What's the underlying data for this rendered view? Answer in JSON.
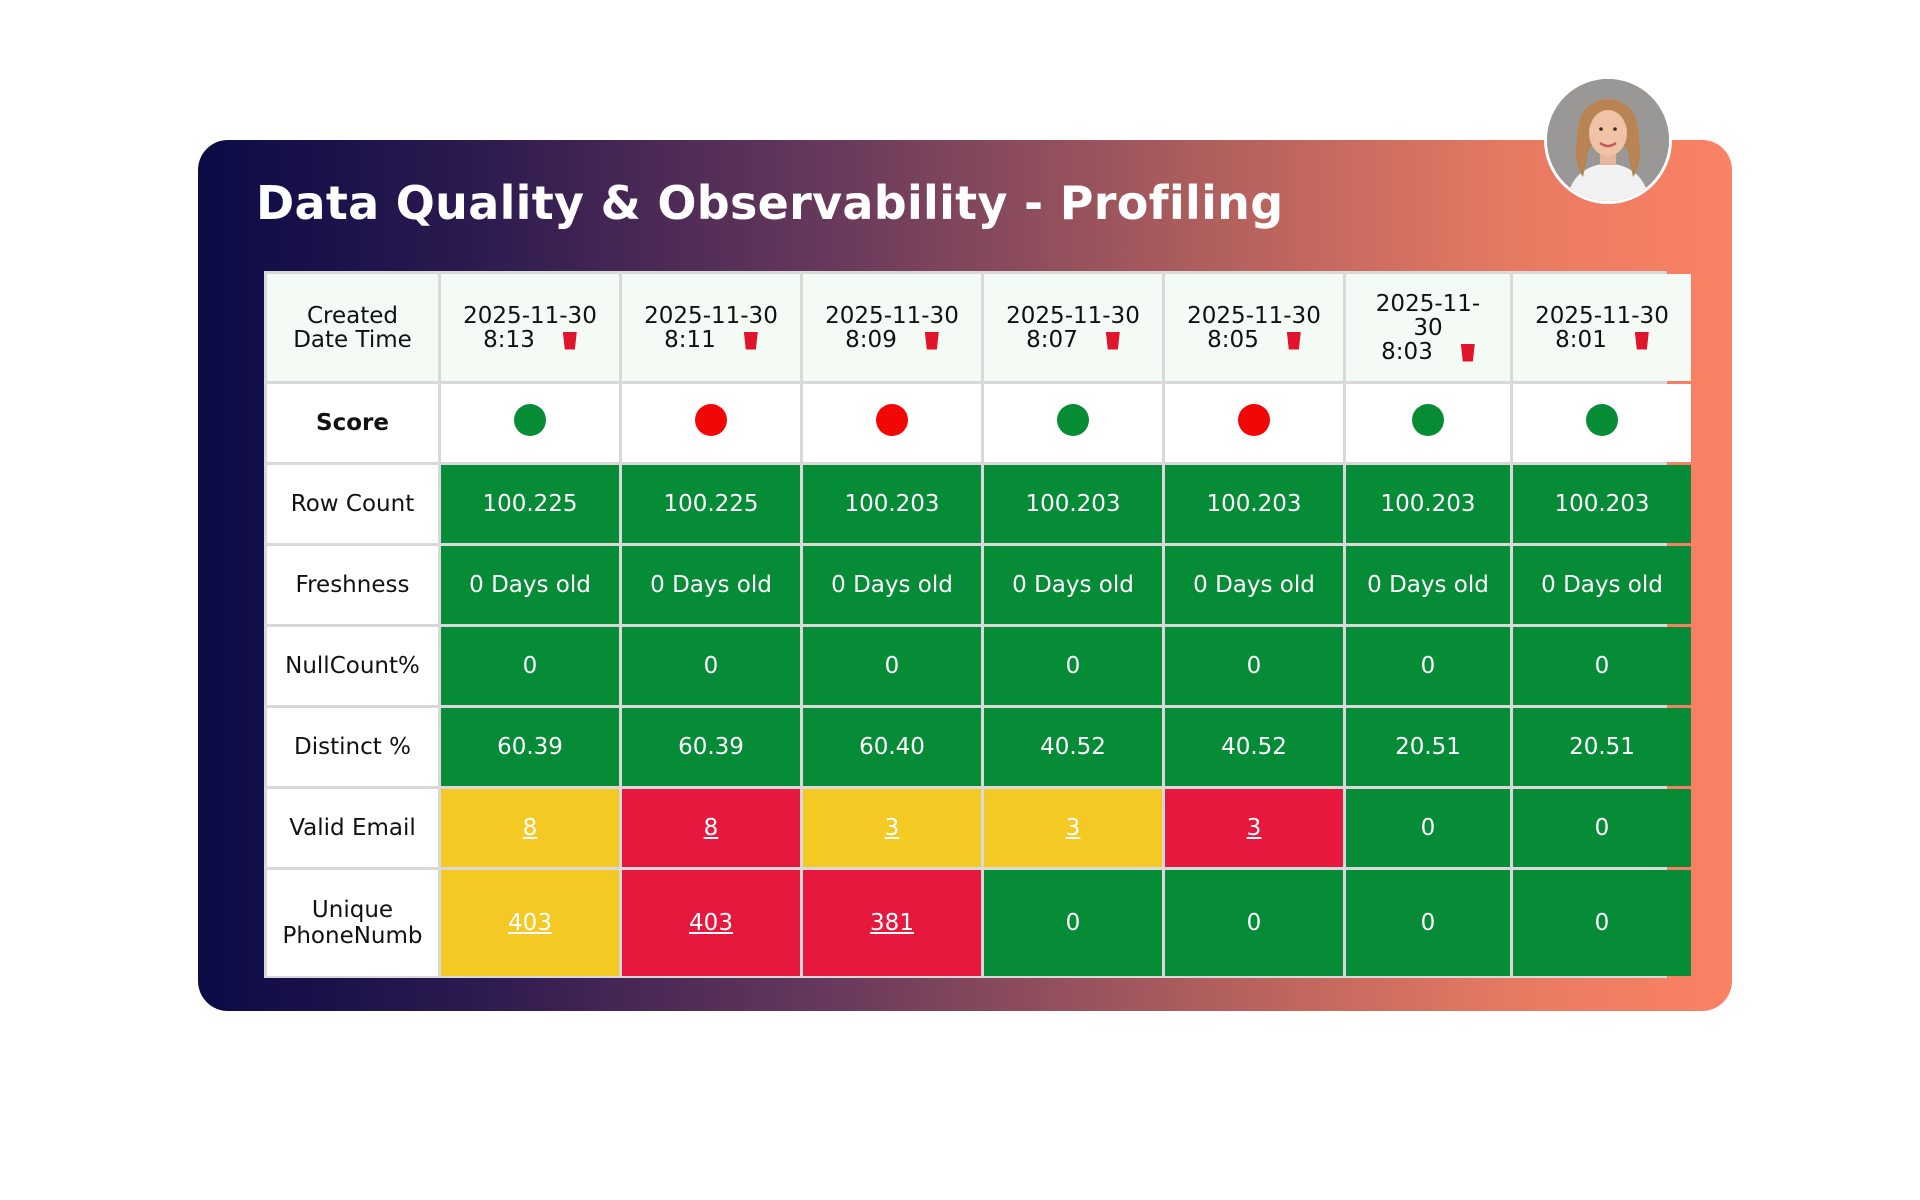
{
  "title": "Data Quality & Observability - Profiling",
  "header": {
    "label_line1": "Created",
    "label_line2": "Date Time",
    "columns": [
      {
        "date": "2025-11-30",
        "time": "8:13"
      },
      {
        "date": "2025-11-30",
        "time": "8:11"
      },
      {
        "date": "2025-11-30",
        "time": "8:09"
      },
      {
        "date": "2025-11-30",
        "time": "8:07"
      },
      {
        "date": "2025-11-30",
        "time": "8:05"
      },
      {
        "date_a": "2025-11-",
        "date_b": "30",
        "time": "8:03"
      },
      {
        "date": "2025-11-30",
        "time": "8:01"
      }
    ]
  },
  "score": {
    "label": "Score",
    "status": [
      "green",
      "red",
      "red",
      "green",
      "red",
      "green",
      "green"
    ]
  },
  "rows": {
    "row_count": {
      "label": "Row Count",
      "values": [
        "100.225",
        "100.225",
        "100.203",
        "100.203",
        "100.203",
        "100.203",
        "100.203"
      ]
    },
    "freshness": {
      "label": "Freshness",
      "values": [
        "0 Days old",
        "0 Days old",
        "0 Days old",
        "0 Days old",
        "0 Days old",
        "0 Days old",
        "0 Days old"
      ]
    },
    "nullcount": {
      "label": "NullCount%",
      "values": [
        "0",
        "0",
        "0",
        "0",
        "0",
        "0",
        "0"
      ]
    },
    "distinct": {
      "label": "Distinct %",
      "values": [
        "60.39",
        "60.39",
        "60.40",
        "40.52",
        "40.52",
        "20.51",
        "20.51"
      ]
    },
    "valid_email": {
      "label": "Valid Email",
      "values": [
        "8",
        "8",
        "3",
        "3",
        "3",
        "0",
        "0"
      ],
      "status": [
        "yellow",
        "red",
        "yellow",
        "yellow",
        "red",
        "green",
        "green"
      ]
    },
    "unique_phone": {
      "label_line1": "Unique",
      "label_line2": "PhoneNumb",
      "values": [
        "403",
        "403",
        "381",
        "0",
        "0",
        "0",
        "0"
      ],
      "status": [
        "yellow",
        "red",
        "red",
        "green",
        "green",
        "green",
        "green"
      ]
    }
  },
  "colors": {
    "good": "#068b37",
    "bad": "#e6183e",
    "warn": "#f5c923",
    "header_bg": "#f3fbf4"
  },
  "icons": {
    "delete": "trash-icon",
    "avatar": "user-avatar"
  }
}
